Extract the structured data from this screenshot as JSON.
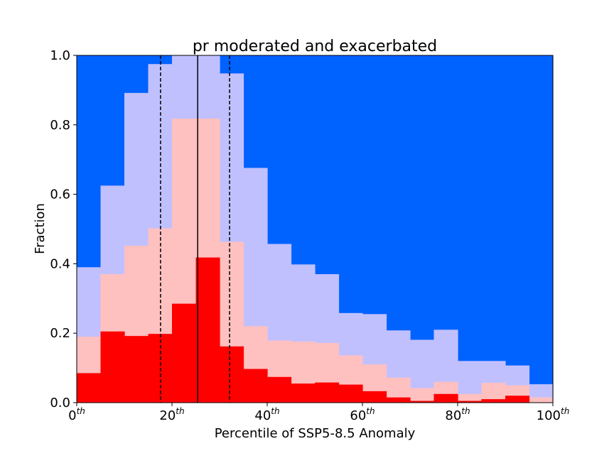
{
  "chart_data": {
    "type": "bar",
    "title": "pr moderated and exacerbated",
    "xlabel": "Percentile of SSP5-8.5 Anomaly",
    "ylabel": "Fraction",
    "xlim": [
      0,
      100
    ],
    "ylim": [
      0,
      1
    ],
    "grid": false,
    "bin_width": 5,
    "x": [
      0,
      5,
      10,
      15,
      20,
      25,
      30,
      35,
      40,
      45,
      50,
      55,
      60,
      65,
      70,
      75,
      80,
      85,
      90,
      95
    ],
    "series": [
      {
        "color": "#ff0000",
        "values": [
          0.085,
          0.205,
          0.192,
          0.198,
          0.285,
          0.418,
          0.162,
          0.097,
          0.074,
          0.055,
          0.058,
          0.052,
          0.033,
          0.015,
          0.005,
          0.025,
          0.005,
          0.01,
          0.02,
          0.0
        ]
      },
      {
        "color": "#ffc0c0",
        "values": [
          0.19,
          0.37,
          0.452,
          0.502,
          0.818,
          0.818,
          0.463,
          0.22,
          0.179,
          0.176,
          0.172,
          0.136,
          0.11,
          0.072,
          0.042,
          0.06,
          0.025,
          0.057,
          0.05,
          0.015
        ]
      },
      {
        "color": "#c0c0ff",
        "values": [
          0.39,
          0.625,
          0.892,
          0.975,
          1.0,
          1.0,
          0.948,
          0.676,
          0.457,
          0.398,
          0.37,
          0.258,
          0.255,
          0.208,
          0.181,
          0.21,
          0.12,
          0.12,
          0.107,
          0.053
        ]
      },
      {
        "color": "#0062ff",
        "values": [
          1,
          1,
          1,
          1,
          1,
          1,
          1,
          1,
          1,
          1,
          1,
          1,
          1,
          1,
          1,
          1,
          1,
          1,
          1,
          1
        ]
      }
    ],
    "vlines": [
      {
        "x": 17.6,
        "style": "dashed"
      },
      {
        "x": 25.4,
        "style": "solid"
      },
      {
        "x": 32.1,
        "style": "dashed"
      }
    ],
    "xticks": [
      {
        "value": 0,
        "base": "0",
        "sup": "th"
      },
      {
        "value": 20,
        "base": "20",
        "sup": "th"
      },
      {
        "value": 40,
        "base": "40",
        "sup": "th"
      },
      {
        "value": 60,
        "base": "60",
        "sup": "th"
      },
      {
        "value": 80,
        "base": "80",
        "sup": "th"
      },
      {
        "value": 100,
        "base": "100",
        "sup": "th"
      }
    ],
    "yticks": [
      {
        "value": 0,
        "label": "0.0"
      },
      {
        "value": 0.2,
        "label": "0.2"
      },
      {
        "value": 0.4,
        "label": "0.4"
      },
      {
        "value": 0.6,
        "label": "0.6"
      },
      {
        "value": 0.8,
        "label": "0.8"
      },
      {
        "value": 1,
        "label": "1.0"
      }
    ]
  }
}
